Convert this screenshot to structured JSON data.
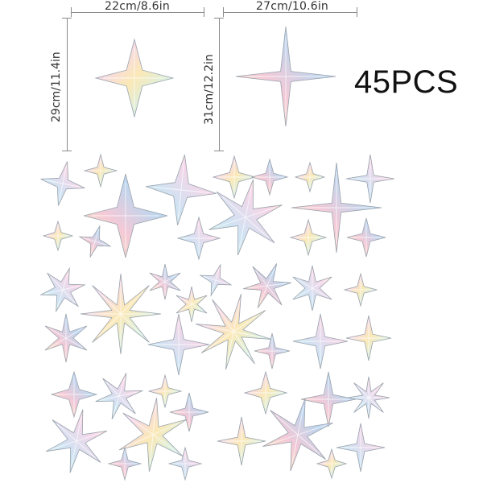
{
  "dimensions": {
    "small_width": "22cm/8.6in",
    "small_height": "29cm/11.4in",
    "large_width": "27cm/10.6in",
    "large_height": "31cm/12.2in"
  },
  "count_label": "45PCS",
  "colors": {
    "dim_line": "#8a8a8a",
    "text": "#333333",
    "iridescent": [
      "#cfe3f3",
      "#f6d6e8",
      "#fbe9b7",
      "#d7f0e2",
      "#e3d6f7",
      "#bcd6ef",
      "#f3c9d7"
    ]
  },
  "icons": [
    "four-point-star-sticker",
    "eight-point-star-sticker",
    "six-point-star-sticker"
  ]
}
